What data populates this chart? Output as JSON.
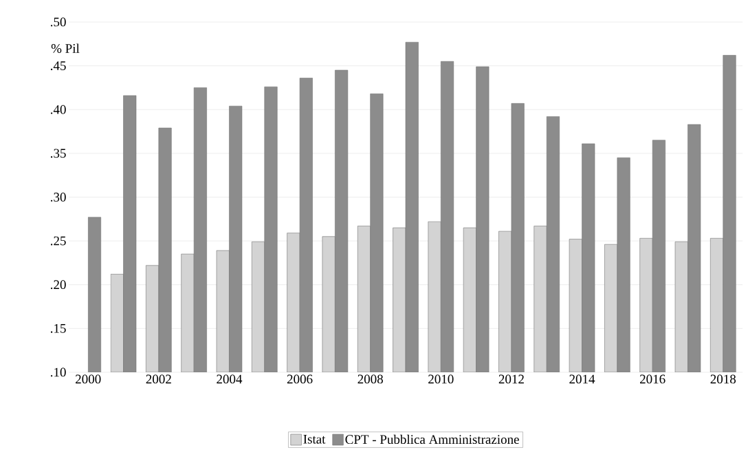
{
  "chart_data": {
    "type": "bar",
    "ylabel": "% Pil",
    "x": [
      2000,
      2001,
      2002,
      2003,
      2004,
      2005,
      2006,
      2007,
      2008,
      2009,
      2010,
      2011,
      2012,
      2013,
      2014,
      2015,
      2016,
      2017,
      2018
    ],
    "series": [
      {
        "name": "Istat",
        "color": "#d3d3d3",
        "values": [
          null,
          0.212,
          0.222,
          0.235,
          0.239,
          0.249,
          0.259,
          0.255,
          0.267,
          0.265,
          0.272,
          0.265,
          0.261,
          0.267,
          0.252,
          0.246,
          0.253,
          0.249,
          0.253
        ]
      },
      {
        "name": "CPT - Pubblica Amministrazione",
        "color": "#8c8c8c",
        "values": [
          0.277,
          0.416,
          0.379,
          0.425,
          0.404,
          0.426,
          0.436,
          0.445,
          0.418,
          0.477,
          0.455,
          0.449,
          0.407,
          0.392,
          0.361,
          0.345,
          0.365,
          0.383,
          0.462
        ]
      }
    ],
    "xlim": [
      1999.45,
      2018.55
    ],
    "ylim": [
      0.1,
      0.5
    ],
    "xticks": [
      2000,
      2002,
      2004,
      2006,
      2008,
      2010,
      2012,
      2014,
      2016,
      2018
    ],
    "yticks": [
      {
        "value": 0.1,
        "label": ".10"
      },
      {
        "value": 0.15,
        "label": ".15"
      },
      {
        "value": 0.2,
        "label": ".20"
      },
      {
        "value": 0.25,
        "label": ".25"
      },
      {
        "value": 0.3,
        "label": ".30"
      },
      {
        "value": 0.35,
        "label": ".35"
      },
      {
        "value": 0.4,
        "label": ".40"
      },
      {
        "value": 0.45,
        "label": ".45"
      },
      {
        "value": 0.5,
        "label": ".50"
      }
    ],
    "grid": "y",
    "legend": "bottom"
  }
}
